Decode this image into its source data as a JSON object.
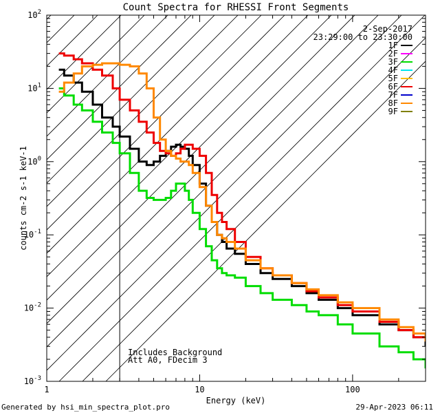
{
  "chart_data": {
    "type": "line",
    "title": "Count Spectra for RHESSI Front Segments",
    "xlabel": "Energy (keV)",
    "ylabel": "counts cm-2 s-1 keV-1",
    "xscale": "log",
    "yscale": "log",
    "xlim": [
      1,
      300
    ],
    "ylim": [
      0.001,
      100
    ],
    "x_tick_labels": [
      "1",
      "10",
      "100"
    ],
    "y_tick_labels": [
      "10-3",
      "10-2",
      "10-1",
      "100",
      "101",
      "102"
    ],
    "date": "2-Sep-2017",
    "time_range": "23:29:00 to 23:30:00",
    "shaded_region": {
      "from": 1,
      "to": 3,
      "style": "diagonal hatch"
    },
    "annotations": [
      "Includes Background",
      "Att A0, FDecim 3"
    ],
    "legend_position": "top-right",
    "legend": [
      {
        "label": "1F",
        "color": "#000000"
      },
      {
        "label": "2F",
        "color": "#ff00ff"
      },
      {
        "label": "3F",
        "color": "#00dd00"
      },
      {
        "label": "4F",
        "color": "#00e5ee"
      },
      {
        "label": "5F",
        "color": "#ffbf00"
      },
      {
        "label": "6F",
        "color": "#ee0000"
      },
      {
        "label": "7F",
        "color": "#0000cc"
      },
      {
        "label": "8F",
        "color": "#ff8800"
      },
      {
        "label": "9F",
        "color": "#808000"
      }
    ],
    "x": [
      1.2,
      1.3,
      1.5,
      1.7,
      2.0,
      2.3,
      2.7,
      3.0,
      3.5,
      4.0,
      4.5,
      5.0,
      5.5,
      6.0,
      6.5,
      7.0,
      7.5,
      8.0,
      8.5,
      9.0,
      10.0,
      11.0,
      12.0,
      13.0,
      14.0,
      15.0,
      17.0,
      20.0,
      25.0,
      30.0,
      40.0,
      50.0,
      60.0,
      80.0,
      100.0,
      150.0,
      200.0,
      250.0,
      300.0
    ],
    "series": [
      {
        "name": "1F",
        "color": "#000000",
        "values": [
          18,
          15,
          12,
          9,
          6,
          4,
          3,
          2.2,
          1.5,
          1.0,
          0.9,
          1.0,
          1.2,
          1.4,
          1.6,
          1.7,
          1.6,
          1.5,
          1.2,
          0.9,
          0.5,
          0.25,
          0.15,
          0.1,
          0.08,
          0.065,
          0.055,
          0.04,
          0.03,
          0.025,
          0.02,
          0.016,
          0.013,
          0.01,
          0.008,
          0.006,
          0.005,
          0.004,
          0.003
        ]
      },
      {
        "name": "3F",
        "color": "#00dd00",
        "values": [
          10,
          8,
          6,
          5,
          3.5,
          2.5,
          1.8,
          1.3,
          0.7,
          0.4,
          0.32,
          0.3,
          0.3,
          0.32,
          0.4,
          0.5,
          0.5,
          0.4,
          0.3,
          0.2,
          0.12,
          0.07,
          0.045,
          0.035,
          0.03,
          0.028,
          0.026,
          0.02,
          0.016,
          0.013,
          0.011,
          0.009,
          0.008,
          0.006,
          0.0045,
          0.003,
          0.0025,
          0.002,
          0.0015
        ]
      },
      {
        "name": "6F",
        "color": "#ee0000",
        "values": [
          30,
          28,
          25,
          22,
          18,
          15,
          10,
          7,
          5,
          3.5,
          2.5,
          1.8,
          1.4,
          1.3,
          1.2,
          1.3,
          1.5,
          1.7,
          1.7,
          1.5,
          1.2,
          0.7,
          0.35,
          0.2,
          0.15,
          0.12,
          0.08,
          0.05,
          0.035,
          0.028,
          0.022,
          0.017,
          0.014,
          0.011,
          0.009,
          0.0065,
          0.005,
          0.004,
          0.0035
        ]
      },
      {
        "name": "8F",
        "color": "#ff8800",
        "values": [
          9,
          12,
          16,
          20,
          21,
          22,
          22,
          21,
          20,
          16,
          10,
          4,
          2,
          1.4,
          1.2,
          1.1,
          1.0,
          1.0,
          0.9,
          0.7,
          0.45,
          0.25,
          0.15,
          0.1,
          0.09,
          0.08,
          0.065,
          0.045,
          0.035,
          0.028,
          0.022,
          0.018,
          0.015,
          0.012,
          0.01,
          0.007,
          0.0055,
          0.0045,
          0.0035
        ]
      }
    ]
  },
  "footer": {
    "left": "Generated by hsi_min_spectra_plot.pro",
    "right": "29-Apr-2023 06:11"
  }
}
